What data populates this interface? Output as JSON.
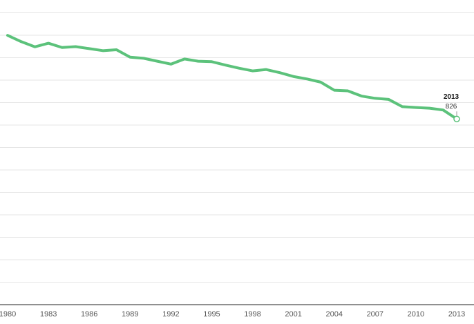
{
  "colors": {
    "line": "#5cc27b",
    "grid": "#e6e6e6",
    "axis": "#222222"
  },
  "chart_data": {
    "type": "line",
    "title": "",
    "xlabel": "",
    "ylabel": "",
    "grid": true,
    "xlim": [
      1980,
      2013
    ],
    "ylim": [
      0,
      1300
    ],
    "tick_labels": [
      "1980",
      "1983",
      "1986",
      "1989",
      "1992",
      "1995",
      "1998",
      "2001",
      "2004",
      "2007",
      "2010",
      "2013"
    ],
    "x": [
      1980,
      1981,
      1982,
      1983,
      1984,
      1985,
      1986,
      1987,
      1988,
      1989,
      1990,
      1991,
      1992,
      1993,
      1994,
      1995,
      1996,
      1997,
      1998,
      1999,
      2000,
      2001,
      2002,
      2003,
      2004,
      2005,
      2006,
      2007,
      2008,
      2009,
      2010,
      2011,
      2012,
      2013
    ],
    "series": [
      {
        "values": [
          1198,
          1170,
          1147,
          1163,
          1144,
          1148,
          1139,
          1130,
          1134,
          1101,
          1096,
          1083,
          1070,
          1093,
          1083,
          1081,
          1066,
          1052,
          1040,
          1046,
          1032,
          1015,
          1004,
          990,
          954,
          951,
          928,
          918,
          913,
          881,
          877,
          874,
          866,
          826
        ]
      }
    ],
    "annotation": {
      "year": "2013",
      "value": "826"
    }
  }
}
